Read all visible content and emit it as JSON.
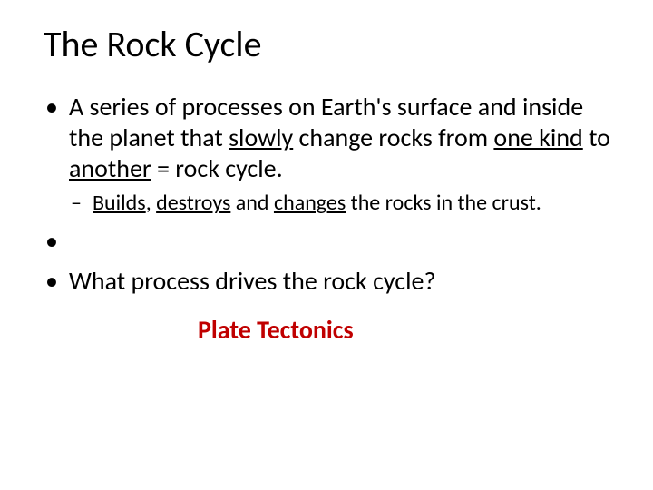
{
  "slide": {
    "title": "The Rock Cycle",
    "bullet1": {
      "pre": "A series of processes on Earth's surface and inside the planet that ",
      "u1": "slowly",
      "mid1": " change rocks from ",
      "u2": "one kind",
      "mid2": " to ",
      "u3": "another",
      "post": " = rock cycle."
    },
    "sub1": {
      "u1": "Builds",
      "sep1": ", ",
      "u2": "destroys",
      "mid": " and ",
      "u3": "changes",
      "post": " the rocks in the crust."
    },
    "bullet2": "What process drives the rock cycle?",
    "answer": "Plate Tectonics",
    "colors": {
      "text": "#000000",
      "answer": "#c00000",
      "background": "#ffffff"
    },
    "fonts": {
      "title_size_pt": 40,
      "body_size_pt": 28,
      "sub_size_pt": 24,
      "answer_size_pt": 28,
      "family": "Calibri"
    }
  }
}
